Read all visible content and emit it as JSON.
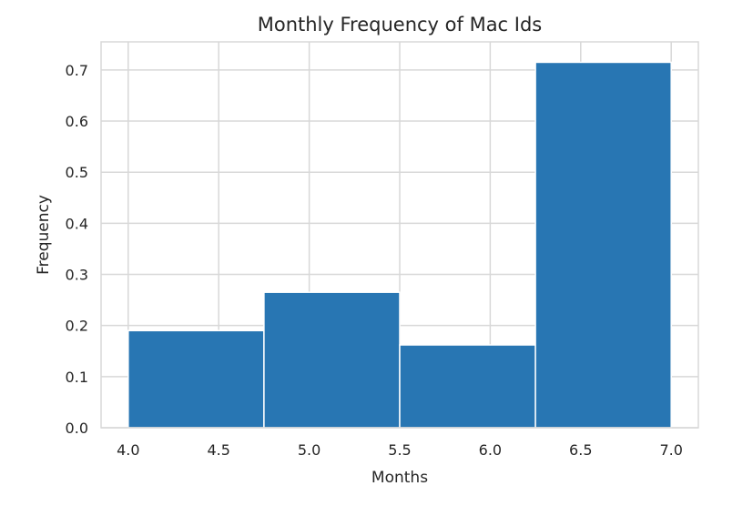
{
  "chart_data": {
    "type": "bar",
    "title": "Monthly Frequency of Mac Ids",
    "xlabel": "Months",
    "ylabel": "Frequency",
    "xlim": [
      3.85,
      7.15
    ],
    "ylim": [
      0,
      0.755
    ],
    "xticks": [
      "4.0",
      "4.5",
      "5.0",
      "5.5",
      "6.0",
      "6.5",
      "7.0"
    ],
    "yticks": [
      "0.0",
      "0.1",
      "0.2",
      "0.3",
      "0.4",
      "0.5",
      "0.6",
      "0.7"
    ],
    "bins": [
      {
        "start": 4.0,
        "end": 4.75,
        "value": 0.19
      },
      {
        "start": 4.75,
        "end": 5.5,
        "value": 0.265
      },
      {
        "start": 5.5,
        "end": 6.25,
        "value": 0.162
      },
      {
        "start": 6.25,
        "end": 7.0,
        "value": 0.715
      }
    ],
    "grid": true,
    "legend": "none",
    "bar_color": "#2876b3"
  }
}
